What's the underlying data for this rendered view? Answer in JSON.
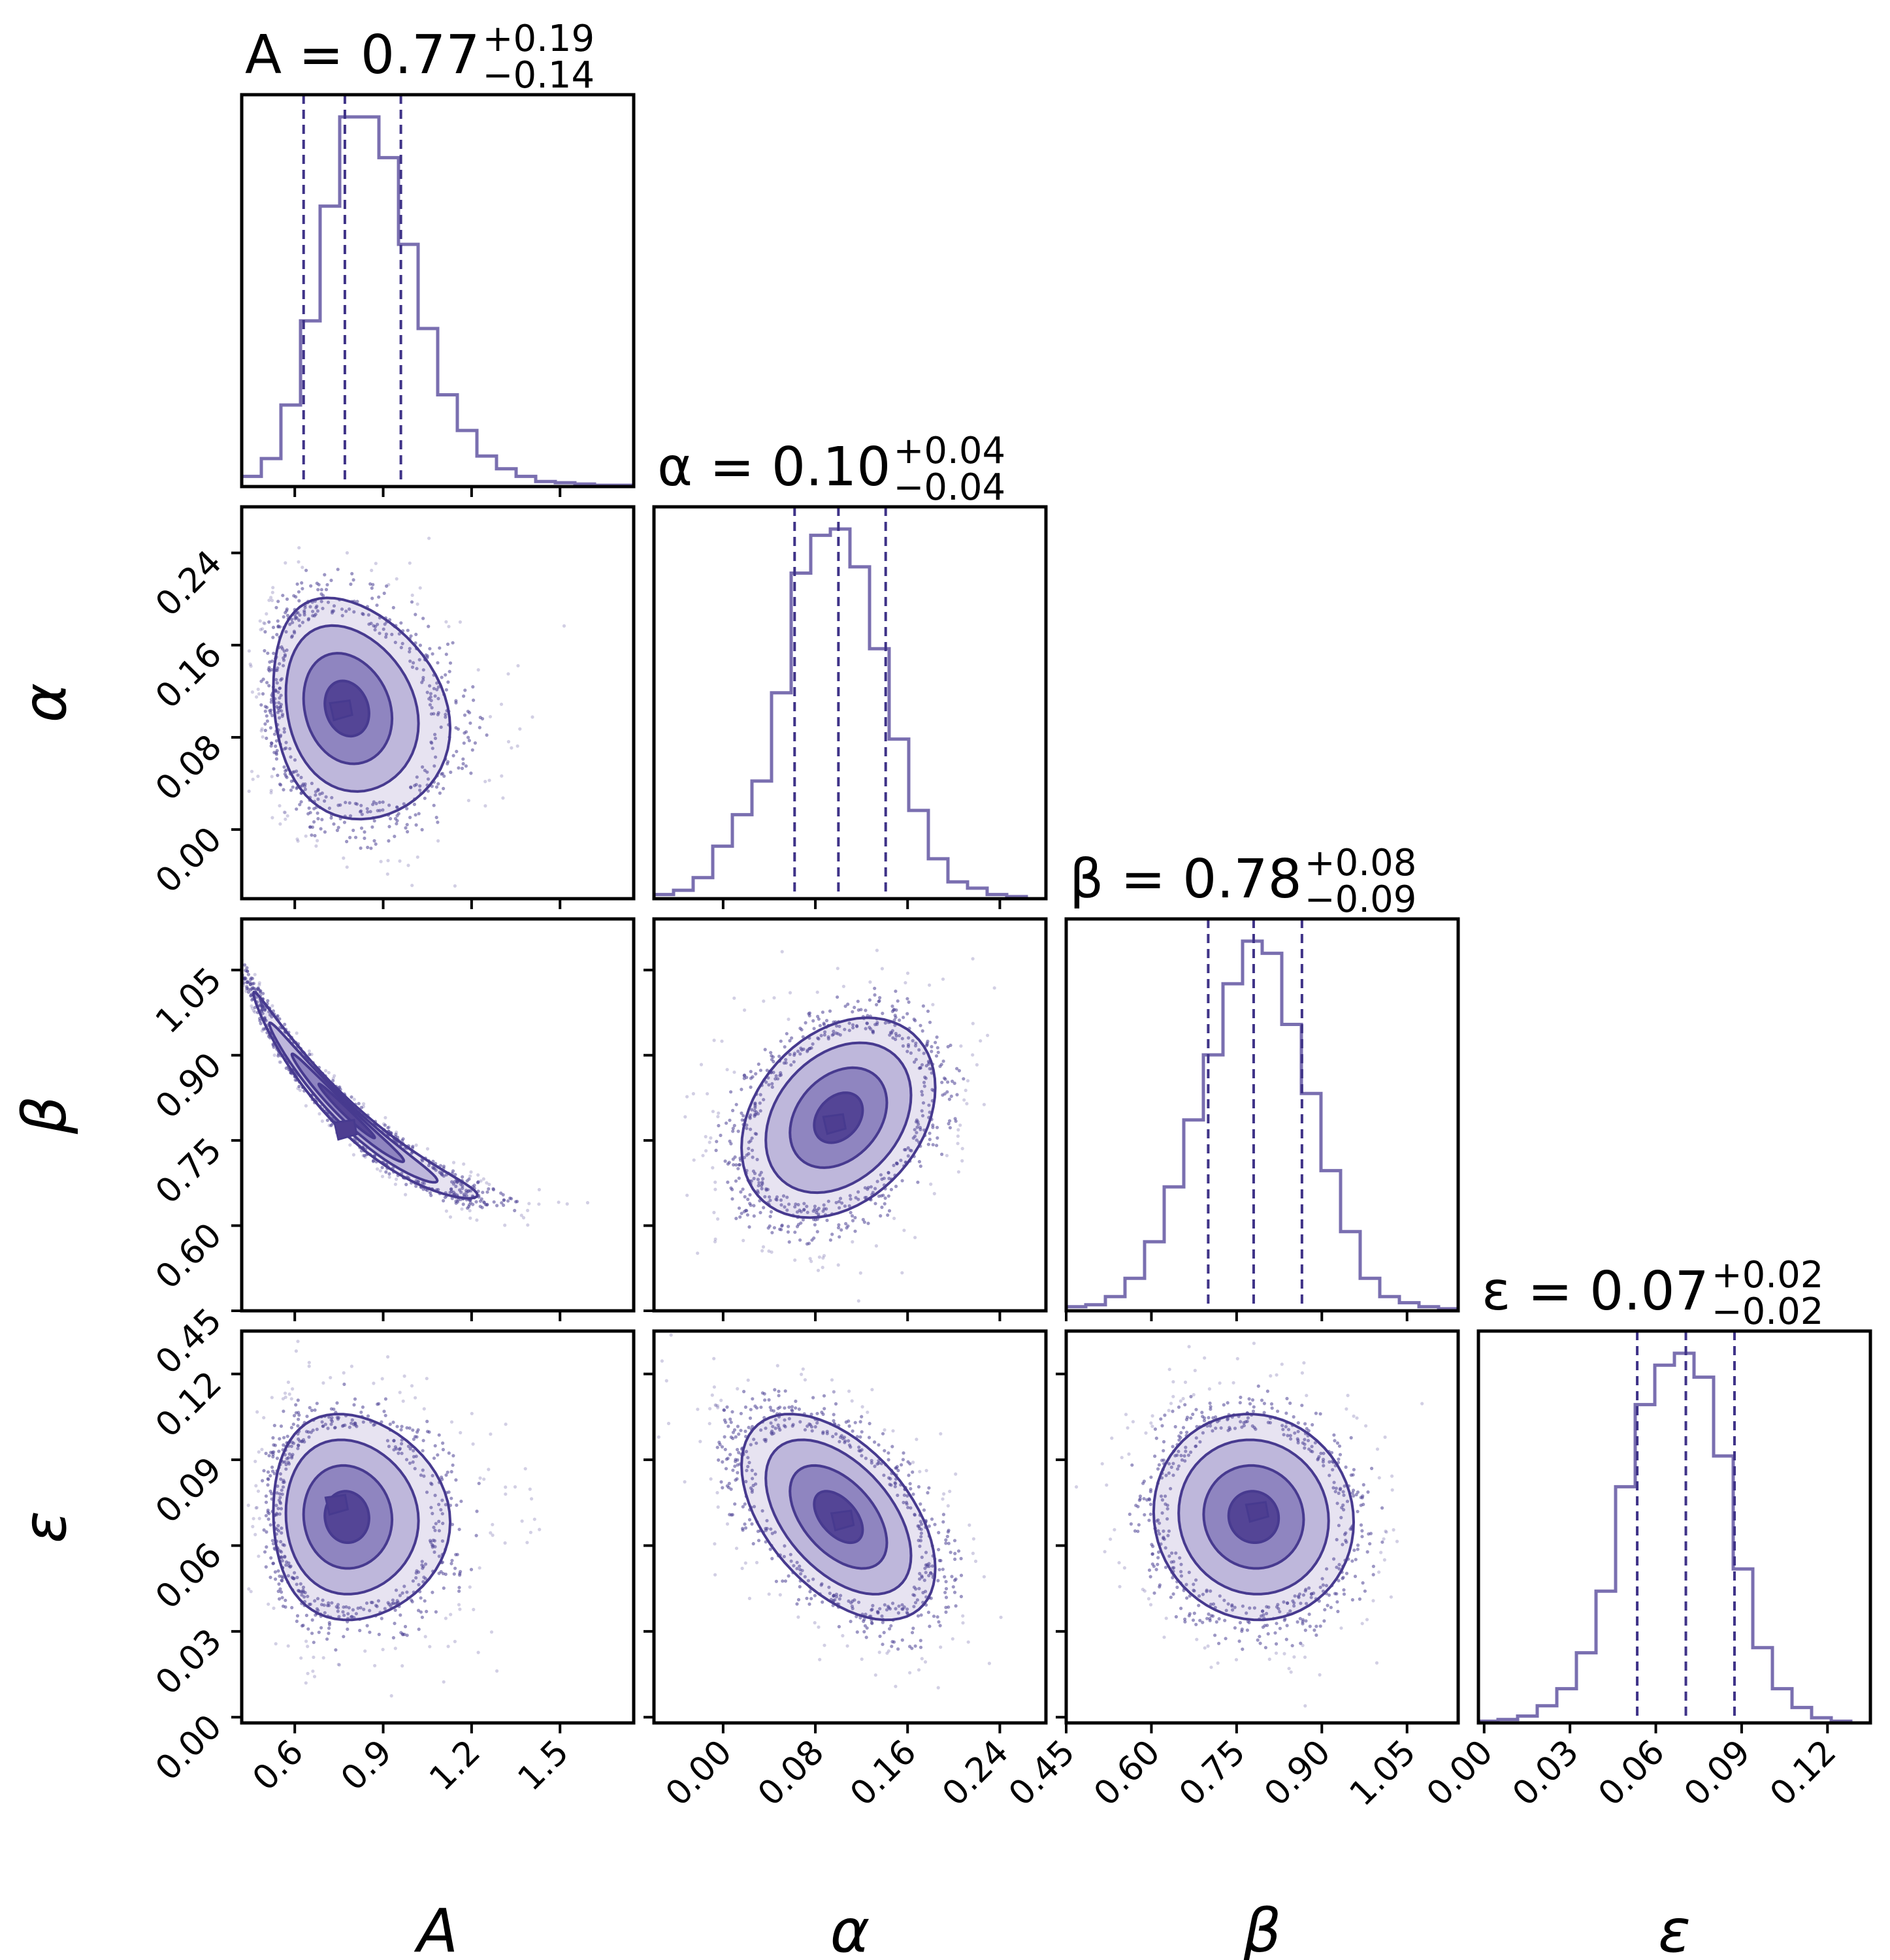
{
  "chart_data": {
    "type": "corner",
    "colors": {
      "hist": "#7a6fb0",
      "quantile": "#3f3388",
      "contour": "#473a8f",
      "points": "#4b3f93",
      "fill_dark": "#4e3e91",
      "fill_mid": "#8a80bd",
      "fill_light": "#b9b1d8",
      "fill_lightest": "#e4e0ef",
      "frame": "#000000"
    },
    "parameters": [
      {
        "symbol": "A",
        "axis_label": "A",
        "median": 0.77,
        "plus": 0.19,
        "minus": 0.14,
        "title": {
          "lhs": "A = 0.77",
          "plus": "+0.19",
          "minus": "−0.14"
        },
        "range": [
          0.42,
          1.75
        ],
        "ticks": [
          0.6,
          0.9,
          1.2,
          1.5
        ],
        "tick_labels": [
          "0.6",
          "0.9",
          "1.2",
          "1.5"
        ],
        "hist": [
          0.4,
          1.1,
          3.2,
          6.5,
          11.0,
          14.5,
          14.5,
          12.9,
          9.5,
          6.2,
          3.6,
          2.2,
          1.2,
          0.7,
          0.4,
          0.2,
          0.15,
          0.1,
          0.05,
          0.05
        ],
        "quantiles": [
          0.63,
          0.77,
          0.96
        ]
      },
      {
        "symbol": "α",
        "axis_label": "α",
        "median": 0.1,
        "plus": 0.04,
        "minus": 0.04,
        "title": {
          "lhs": "α = 0.10",
          "plus": "+0.04",
          "minus": "−0.04"
        },
        "range": [
          -0.06,
          0.28
        ],
        "ticks": [
          0.0,
          0.08,
          0.16,
          0.24
        ],
        "tick_labels": [
          "0.00",
          "0.08",
          "0.16",
          "0.24"
        ],
        "hist": [
          0.2,
          0.4,
          1.0,
          2.5,
          4.0,
          5.6,
          9.8,
          15.5,
          17.3,
          17.6,
          15.8,
          11.9,
          7.6,
          4.2,
          1.9,
          0.8,
          0.5,
          0.2,
          0.1,
          0.0
        ],
        "quantiles": [
          0.062,
          0.1,
          0.141
        ]
      },
      {
        "symbol": "β",
        "axis_label": "β",
        "median": 0.78,
        "plus": 0.08,
        "minus": 0.09,
        "title": {
          "lhs": "β = 0.78",
          "plus": "+0.08",
          "minus": "−0.09"
        },
        "range": [
          0.45,
          1.14
        ],
        "ticks": [
          0.45,
          0.6,
          0.75,
          0.9,
          1.05
        ],
        "tick_labels": [
          "0.45",
          "0.60",
          "0.75",
          "0.90",
          "1.05"
        ],
        "hist": [
          0.2,
          0.3,
          0.7,
          1.6,
          3.4,
          6.1,
          9.4,
          12.6,
          16.1,
          18.2,
          17.6,
          14.1,
          10.7,
          6.9,
          3.9,
          1.6,
          0.7,
          0.4,
          0.2,
          0.1
        ],
        "quantiles": [
          0.7,
          0.78,
          0.865
        ]
      },
      {
        "symbol": "ε",
        "axis_label": "ε",
        "median": 0.07,
        "plus": 0.02,
        "minus": 0.02,
        "title": {
          "lhs": "ε = 0.07",
          "plus": "+0.02",
          "minus": "−0.02"
        },
        "range": [
          -0.002,
          0.135
        ],
        "ticks": [
          0.0,
          0.03,
          0.06,
          0.09,
          0.12
        ],
        "tick_labels": [
          "0.00",
          "0.03",
          "0.06",
          "0.09",
          "0.12"
        ],
        "hist": [
          0.1,
          0.2,
          0.4,
          1.0,
          2.0,
          4.1,
          7.7,
          13.8,
          18.6,
          20.9,
          21.6,
          20.2,
          15.6,
          9.0,
          4.4,
          2.0,
          0.9,
          0.3,
          0.1,
          0.0
        ],
        "quantiles": [
          0.0535,
          0.0705,
          0.0875
        ]
      }
    ],
    "pairs": [
      {
        "x": 0,
        "y": 1,
        "mean": [
          0.78,
          0.105
        ],
        "sd": [
          0.15,
          0.048
        ],
        "rho": -0.18,
        "skew": 0.6,
        "curve": 0,
        "peak": [
          0.755,
          0.104
        ]
      },
      {
        "x": 0,
        "y": 2,
        "mean": [
          0.78,
          0.8
        ],
        "sd": [
          0.19,
          0.095
        ],
        "rho": -0.985,
        "skew": 0.6,
        "curve": 0.23,
        "peak": [
          0.77,
          0.77
        ]
      },
      {
        "x": 0,
        "y": 3,
        "mean": [
          0.78,
          0.07
        ],
        "sd": [
          0.15,
          0.018
        ],
        "rho": -0.05,
        "skew": 0.6,
        "curve": 0,
        "peak": [
          0.74,
          0.0745
        ]
      },
      {
        "x": 1,
        "y": 2,
        "mean": [
          0.1,
          0.79
        ],
        "sd": [
          0.042,
          0.088
        ],
        "rho": 0.3,
        "skew": 0,
        "curve": 0,
        "peak": [
          0.096,
          0.78
        ]
      },
      {
        "x": 1,
        "y": 3,
        "mean": [
          0.1,
          0.07
        ],
        "sd": [
          0.042,
          0.018
        ],
        "rho": -0.5,
        "skew": 0,
        "curve": 0,
        "peak": [
          0.103,
          0.069
        ]
      },
      {
        "x": 2,
        "y": 3,
        "mean": [
          0.78,
          0.07
        ],
        "sd": [
          0.088,
          0.018
        ],
        "rho": -0.05,
        "skew": 0,
        "curve": 0,
        "peak": [
          0.785,
          0.072
        ]
      }
    ],
    "contour_levels_sigma": [
      0.5,
      1.0,
      1.5,
      2.0
    ]
  }
}
